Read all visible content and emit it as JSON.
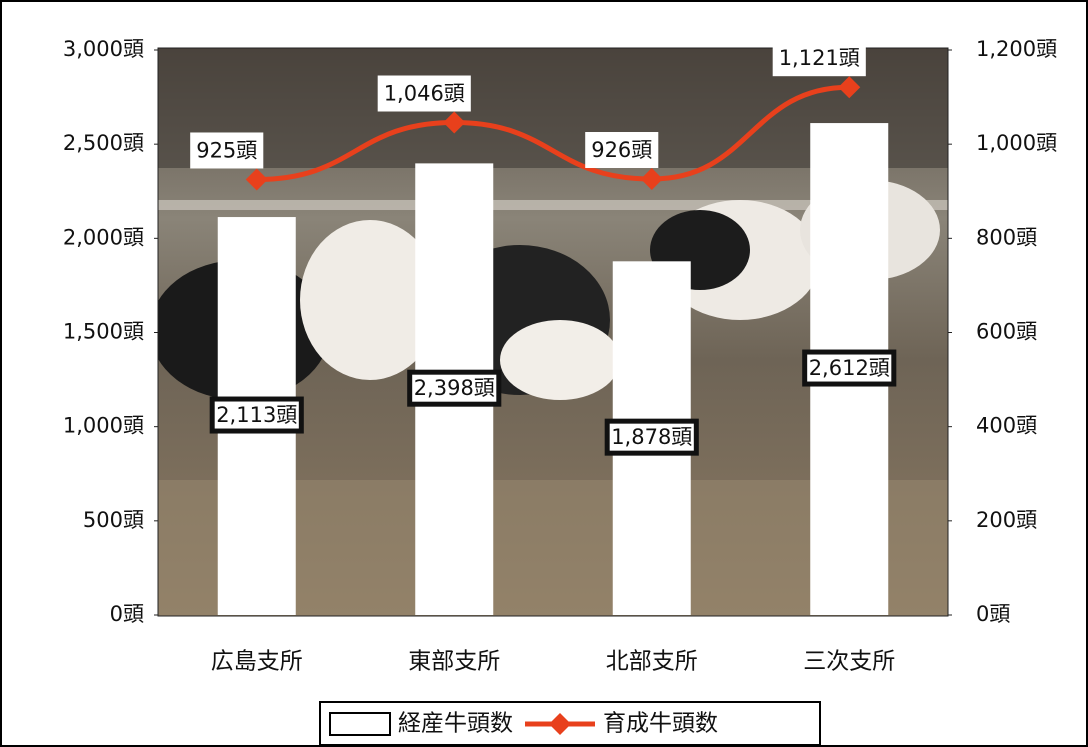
{
  "chart_data": {
    "type": "bar",
    "categories": [
      "広島支所",
      "東部支所",
      "北部支所",
      "三次支所"
    ],
    "series": [
      {
        "name": "経産牛頭数",
        "type": "bar",
        "color": "#ffffff",
        "values": [
          2113,
          2398,
          1878,
          2612
        ],
        "value_labels": [
          "2,113頭",
          "2,398頭",
          "1,878頭",
          "2,612頭"
        ]
      },
      {
        "name": "育成牛頭数",
        "type": "line",
        "axis": "y2",
        "color": "#e8401c",
        "values": [
          925,
          1046,
          926,
          1121
        ],
        "value_labels": [
          "925頭",
          "1,046頭",
          "926頭",
          "1,121頭"
        ]
      }
    ],
    "ylim": [
      0,
      3000
    ],
    "yticks": [
      {
        "value": 0,
        "label": "0頭"
      },
      {
        "value": 500,
        "label": "500頭"
      },
      {
        "value": 1000,
        "label": "1,000頭"
      },
      {
        "value": 1500,
        "label": "1,500頭"
      },
      {
        "value": 2000,
        "label": "2,000頭"
      },
      {
        "value": 2500,
        "label": "2,500頭"
      },
      {
        "value": 3000,
        "label": "3,000頭"
      }
    ],
    "y2lim": [
      0,
      1200
    ],
    "y2ticks": [
      {
        "value": 0,
        "label": "0頭"
      },
      {
        "value": 200,
        "label": "200頭"
      },
      {
        "value": 400,
        "label": "400頭"
      },
      {
        "value": 600,
        "label": "600頭"
      },
      {
        "value": 800,
        "label": "800頭"
      },
      {
        "value": 1000,
        "label": "1,000頭"
      },
      {
        "value": 1200,
        "label": "1,200頭"
      }
    ],
    "legend": "bottom"
  }
}
